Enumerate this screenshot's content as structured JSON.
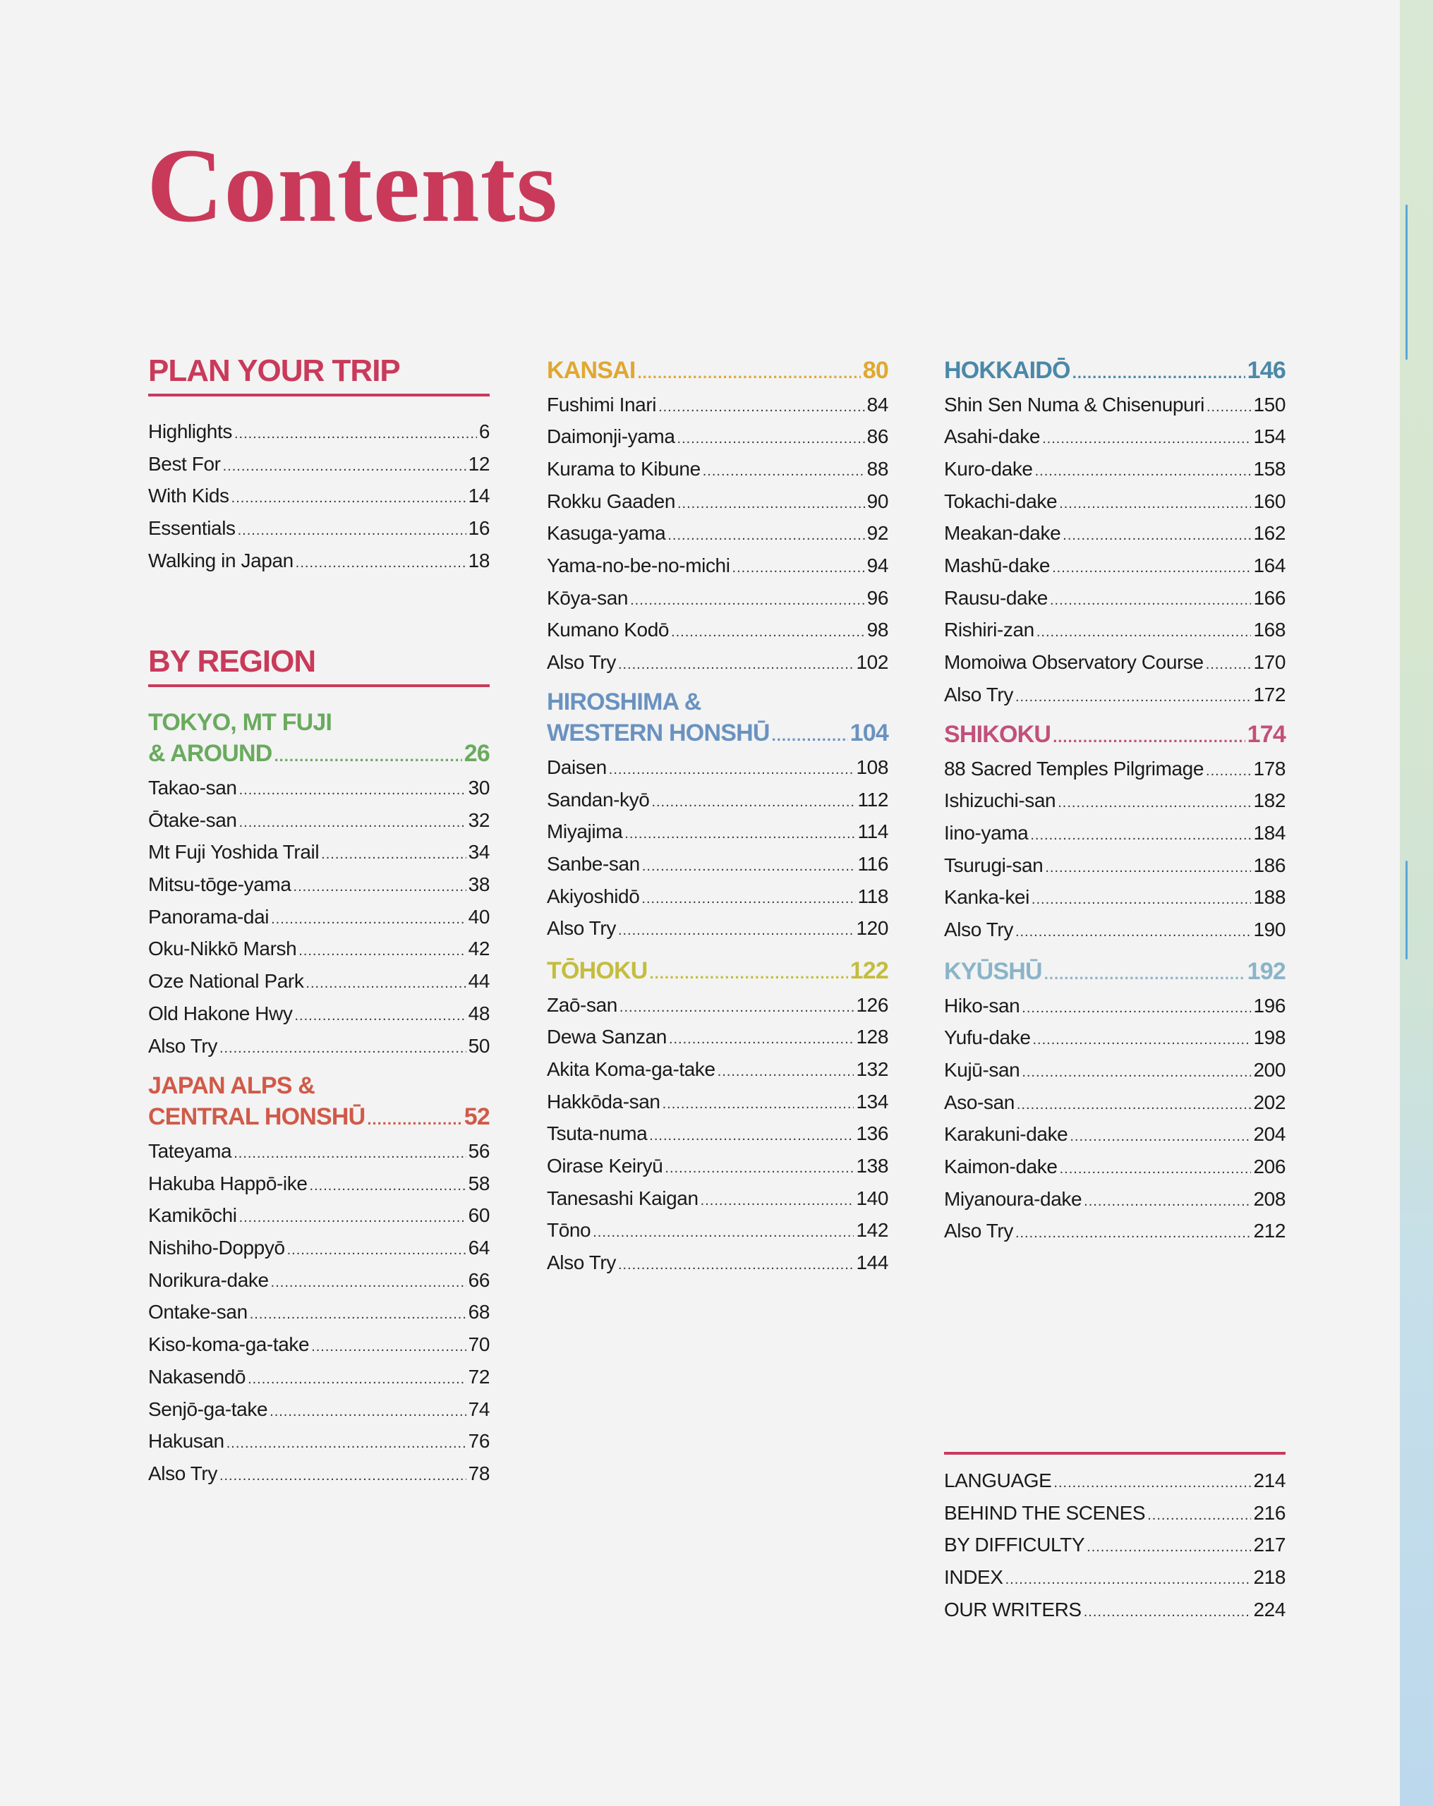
{
  "page_title": "Contents",
  "colors": {
    "title": "#c93a5a",
    "kansai": "#e0a830",
    "hokkaido": "#4a88a8",
    "tokyo": "#6aaa5e",
    "japan_alps": "#d05a48",
    "hiroshima": "#6a92c0",
    "tohoku": "#c4bd3e",
    "shikoku": "#c2507a",
    "kyushu": "#8ab4c8"
  },
  "plan_your_trip": {
    "heading": "PLAN YOUR TRIP",
    "items": [
      {
        "label": "Highlights",
        "page": "6"
      },
      {
        "label": "Best For",
        "page": "12"
      },
      {
        "label": "With Kids",
        "page": "14"
      },
      {
        "label": "Essentials",
        "page": "16"
      },
      {
        "label": "Walking in Japan",
        "page": "18"
      }
    ]
  },
  "by_region": {
    "heading": "BY REGION",
    "sections": {
      "tokyo": {
        "title_lines": [
          "TOKYO, MT FUJI",
          "& AROUND"
        ],
        "page": "26",
        "color": "#6aaa5e",
        "items": [
          {
            "label": "Takao-san",
            "page": "30"
          },
          {
            "label": "Ōtake-san",
            "page": "32"
          },
          {
            "label": "Mt Fuji Yoshida Trail",
            "page": "34"
          },
          {
            "label": "Mitsu-tōge-yama",
            "page": "38"
          },
          {
            "label": "Panorama-dai",
            "page": "40"
          },
          {
            "label": "Oku-Nikkō Marsh",
            "page": "42"
          },
          {
            "label": "Oze National Park",
            "page": "44"
          },
          {
            "label": "Old Hakone Hwy",
            "page": "48"
          },
          {
            "label": "Also Try",
            "page": "50"
          }
        ]
      },
      "japan_alps": {
        "title_lines": [
          "JAPAN ALPS &",
          "CENTRAL HONSHŪ"
        ],
        "page": "52",
        "color": "#d05a48",
        "items": [
          {
            "label": "Tateyama",
            "page": "56"
          },
          {
            "label": "Hakuba Happō-ike",
            "page": "58"
          },
          {
            "label": "Kamikōchi",
            "page": "60"
          },
          {
            "label": "Nishiho-Doppyō",
            "page": "64"
          },
          {
            "label": "Norikura-dake",
            "page": "66"
          },
          {
            "label": "Ontake-san",
            "page": "68"
          },
          {
            "label": "Kiso-koma-ga-take",
            "page": "70"
          },
          {
            "label": "Nakasendō",
            "page": "72"
          },
          {
            "label": "Senjō-ga-take",
            "page": "74"
          },
          {
            "label": "Hakusan",
            "page": "76"
          },
          {
            "label": "Also Try",
            "page": "78"
          }
        ]
      },
      "kansai": {
        "title_lines": [
          "KANSAI"
        ],
        "page": "80",
        "color": "#e0a830",
        "items": [
          {
            "label": "Fushimi Inari",
            "page": "84"
          },
          {
            "label": "Daimonji-yama",
            "page": "86"
          },
          {
            "label": "Kurama to Kibune",
            "page": "88"
          },
          {
            "label": "Rokku Gaaden",
            "page": "90"
          },
          {
            "label": "Kasuga-yama",
            "page": "92"
          },
          {
            "label": "Yama-no-be-no-michi",
            "page": "94"
          },
          {
            "label": "Kōya-san",
            "page": "96"
          },
          {
            "label": "Kumano Kodō",
            "page": "98"
          },
          {
            "label": "Also Try",
            "page": "102"
          }
        ]
      },
      "hiroshima": {
        "title_lines": [
          "HIROSHIMA &",
          "WESTERN HONSHŪ"
        ],
        "page": "104",
        "color": "#6a92c0",
        "items": [
          {
            "label": "Daisen",
            "page": "108"
          },
          {
            "label": "Sandan-kyō",
            "page": "112"
          },
          {
            "label": "Miyajima",
            "page": "114"
          },
          {
            "label": "Sanbe-san",
            "page": "116"
          },
          {
            "label": "Akiyoshidō",
            "page": "118"
          },
          {
            "label": "Also Try",
            "page": "120"
          }
        ]
      },
      "tohoku": {
        "title_lines": [
          "TŌHOKU"
        ],
        "page": "122",
        "color": "#c4bd3e",
        "items": [
          {
            "label": "Zaō-san",
            "page": "126"
          },
          {
            "label": "Dewa Sanzan",
            "page": "128"
          },
          {
            "label": "Akita Koma-ga-take",
            "page": "132"
          },
          {
            "label": "Hakkōda-san",
            "page": "134"
          },
          {
            "label": "Tsuta-numa",
            "page": "136"
          },
          {
            "label": "Oirase Keiryū",
            "page": "138"
          },
          {
            "label": "Tanesashi Kaigan",
            "page": "140"
          },
          {
            "label": "Tōno",
            "page": "142"
          },
          {
            "label": "Also Try",
            "page": "144"
          }
        ]
      },
      "hokkaido": {
        "title_lines": [
          "HOKKAIDŌ"
        ],
        "page": "146",
        "color": "#4a88a8",
        "items": [
          {
            "label": "Shin Sen Numa & Chisenupuri",
            "page": "150"
          },
          {
            "label": "Asahi-dake",
            "page": "154"
          },
          {
            "label": "Kuro-dake",
            "page": "158"
          },
          {
            "label": "Tokachi-dake",
            "page": "160"
          },
          {
            "label": "Meakan-dake",
            "page": "162"
          },
          {
            "label": "Mashū-dake",
            "page": "164"
          },
          {
            "label": "Rausu-dake",
            "page": "166"
          },
          {
            "label": "Rishiri-zan",
            "page": "168"
          },
          {
            "label": "Momoiwa Observatory Course",
            "page": "170"
          },
          {
            "label": "Also Try",
            "page": "172"
          }
        ]
      },
      "shikoku": {
        "title_lines": [
          "SHIKOKU"
        ],
        "page": "174",
        "color": "#c2507a",
        "items": [
          {
            "label": "88 Sacred Temples Pilgrimage",
            "page": "178"
          },
          {
            "label": "Ishizuchi-san",
            "page": "182"
          },
          {
            "label": "Iino-yama",
            "page": "184"
          },
          {
            "label": "Tsurugi-san",
            "page": "186"
          },
          {
            "label": "Kanka-kei",
            "page": "188"
          },
          {
            "label": "Also Try",
            "page": "190"
          }
        ]
      },
      "kyushu": {
        "title_lines": [
          "KYŪSHŪ"
        ],
        "page": "192",
        "color": "#8ab4c8",
        "items": [
          {
            "label": "Hiko-san",
            "page": "196"
          },
          {
            "label": "Yufu-dake",
            "page": "198"
          },
          {
            "label": "Kujū-san",
            "page": "200"
          },
          {
            "label": "Aso-san",
            "page": "202"
          },
          {
            "label": "Karakuni-dake",
            "page": "204"
          },
          {
            "label": "Kaimon-dake",
            "page": "206"
          },
          {
            "label": "Miyanoura-dake",
            "page": "208"
          },
          {
            "label": "Also Try",
            "page": "212"
          }
        ]
      }
    }
  },
  "back_matter": {
    "items": [
      {
        "label": "LANGUAGE",
        "page": "214"
      },
      {
        "label": "BEHIND THE SCENES",
        "page": "216"
      },
      {
        "label": "BY DIFFICULTY",
        "page": "217"
      },
      {
        "label": "INDEX",
        "page": "218"
      },
      {
        "label": "OUR WRITERS",
        "page": "224"
      }
    ]
  }
}
